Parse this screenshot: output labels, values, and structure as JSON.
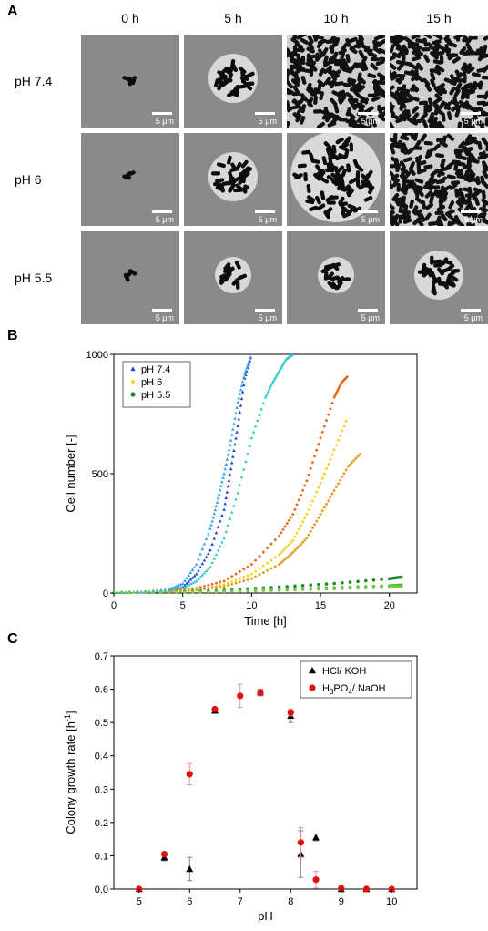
{
  "panel_a": {
    "letter": "A",
    "columns": [
      "0 h",
      "5 h",
      "10 h",
      "15 h"
    ],
    "rows": [
      "pH 7.4",
      "pH 6",
      "pH 5.5"
    ],
    "scale_label": "5 μm",
    "images": [
      [
        "small-cluster",
        "colony",
        "dense-field",
        "dense-field"
      ],
      [
        "small-cluster",
        "colony",
        "large-colony",
        "dense-field"
      ],
      [
        "small-cluster",
        "small-colony",
        "small-colony",
        "colony"
      ]
    ]
  },
  "panel_b": {
    "letter": "B",
    "legend": [
      "pH 7.4",
      "pH 6",
      "pH 5.5"
    ]
  },
  "panel_c": {
    "letter": "C",
    "legend": [
      "HCl/ KOH",
      "H3PO4/ NaOH"
    ]
  },
  "chart_data": [
    {
      "type": "scatter",
      "xlabel": "Time [h]",
      "ylabel": "Cell number [-]",
      "xlim": [
        0,
        22
      ],
      "ylim": [
        0,
        1000
      ],
      "xticks": [
        0,
        5,
        10,
        15,
        20
      ],
      "yticks": [
        0,
        500,
        1000
      ],
      "legend_position": "top-left",
      "series": [
        {
          "name": "pH 7.4",
          "color": "#1f3fd6",
          "marker": "triangle",
          "x": [
            0,
            2,
            4,
            5,
            6,
            7,
            8,
            8.5,
            9,
            9.5,
            10
          ],
          "y": [
            2,
            4,
            10,
            25,
            80,
            180,
            350,
            520,
            700,
            900,
            1000
          ]
        },
        {
          "name": "pH 7.4",
          "color": "#3aa0e8",
          "marker": "triangle",
          "x": [
            0,
            2,
            4,
            5,
            6,
            7,
            7.5,
            8,
            8.5,
            9,
            9.5,
            10
          ],
          "y": [
            2,
            5,
            16,
            40,
            120,
            270,
            380,
            500,
            640,
            800,
            920,
            1000
          ]
        },
        {
          "name": "pH 7.4",
          "color": "#2ec9c9",
          "marker": "triangle",
          "x": [
            0,
            2,
            4,
            5,
            6,
            7,
            8,
            9,
            10,
            11,
            11.5,
            12,
            12.5,
            13
          ],
          "y": [
            2,
            4,
            10,
            22,
            50,
            110,
            230,
            420,
            650,
            820,
            880,
            930,
            980,
            1000
          ]
        },
        {
          "name": "pH 6",
          "color": "#e8661a",
          "marker": "diamond",
          "x": [
            0,
            4,
            6,
            8,
            10,
            12,
            13,
            14,
            15,
            16,
            16.5,
            17
          ],
          "y": [
            2,
            8,
            20,
            50,
            120,
            240,
            330,
            470,
            650,
            820,
            880,
            910
          ]
        },
        {
          "name": "pH 6",
          "color": "#f2d21a",
          "marker": "diamond",
          "x": [
            0,
            4,
            6,
            8,
            10,
            12,
            13,
            14,
            15,
            16,
            17
          ],
          "y": [
            2,
            6,
            14,
            35,
            80,
            160,
            220,
            330,
            460,
            600,
            740
          ]
        },
        {
          "name": "pH 6",
          "color": "#e39a1a",
          "marker": "diamond",
          "x": [
            0,
            4,
            6,
            8,
            10,
            12,
            13,
            14,
            15,
            16,
            17,
            18
          ],
          "y": [
            2,
            5,
            12,
            28,
            60,
            120,
            170,
            230,
            330,
            430,
            530,
            590
          ]
        },
        {
          "name": "pH 5.5",
          "color": "#1a8a2a",
          "marker": "circle",
          "x": [
            0,
            4,
            8,
            12,
            16,
            20,
            21
          ],
          "y": [
            2,
            5,
            12,
            25,
            40,
            60,
            68
          ]
        },
        {
          "name": "pH 5.5",
          "color": "#3ab83a",
          "marker": "circle",
          "x": [
            0,
            4,
            8,
            12,
            16,
            20,
            21
          ],
          "y": [
            2,
            4,
            8,
            15,
            22,
            30,
            34
          ]
        },
        {
          "name": "pH 5.5",
          "color": "#7acb3a",
          "marker": "circle",
          "x": [
            0,
            4,
            8,
            12,
            16,
            20,
            21
          ],
          "y": [
            2,
            3,
            6,
            12,
            18,
            25,
            28
          ]
        }
      ]
    },
    {
      "type": "scatter",
      "xlabel": "pH",
      "ylabel": "Colony growth rate [h-1]",
      "xlim": [
        4.5,
        10.5
      ],
      "ylim": [
        0,
        0.7
      ],
      "xticks": [
        5,
        6,
        7,
        8,
        9,
        10
      ],
      "yticks": [
        0.0,
        0.1,
        0.2,
        0.3,
        0.4,
        0.5,
        0.6,
        0.7
      ],
      "legend_position": "top-right",
      "series": [
        {
          "name": "HCl/ KOH",
          "color": "#000000",
          "marker": "triangle",
          "x": [
            5,
            5.5,
            6,
            6.5,
            7.4,
            8,
            8.2,
            8.5,
            9,
            9.5,
            10
          ],
          "y": [
            0.0,
            0.095,
            0.06,
            0.535,
            0.59,
            0.52,
            0.105,
            0.155,
            0.0,
            0.0,
            0.0
          ],
          "err": [
            0,
            0.01,
            0.035,
            0.005,
            0.01,
            0.02,
            0.07,
            0.01,
            0,
            0,
            0
          ]
        },
        {
          "name": "H3PO4/ NaOH",
          "color": "#e01010",
          "marker": "circle",
          "x": [
            5,
            5.5,
            6,
            6.5,
            7,
            7.4,
            8,
            8.2,
            8.5,
            9,
            9.5,
            10
          ],
          "y": [
            0.0,
            0.105,
            0.345,
            0.54,
            0.58,
            0.59,
            0.53,
            0.14,
            0.028,
            0.003,
            0.0,
            0.0
          ],
          "err": [
            0,
            0.005,
            0.032,
            0.005,
            0.035,
            0.008,
            0.01,
            0.045,
            0.025,
            0.002,
            0,
            0
          ]
        }
      ]
    }
  ]
}
